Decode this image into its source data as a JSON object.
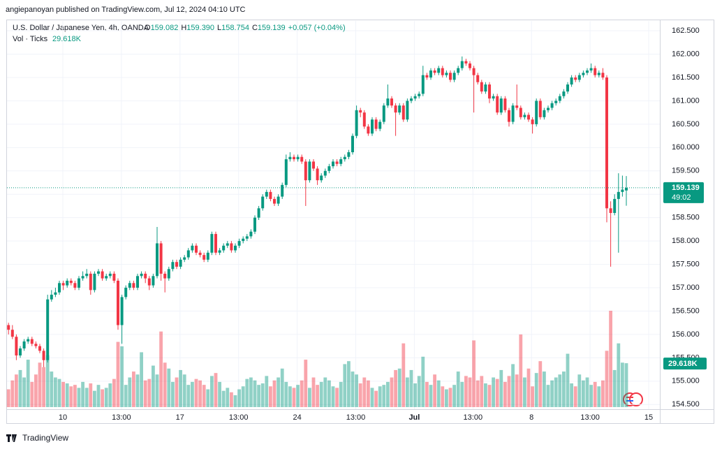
{
  "header": {
    "publisher": "angiepanoyan published on TradingView.com, Jul 12, 2024 04:10 UTC",
    "footer": "TradingView"
  },
  "chart_data": {
    "type": "candlestick",
    "title": "U.S. Dollar / Japanese Yen, 4h, OANDA",
    "ohlc_legend": [
      {
        "label": "O",
        "value": "159.082"
      },
      {
        "label": "H",
        "value": "159.390"
      },
      {
        "label": "L",
        "value": "158.754"
      },
      {
        "label": "C",
        "value": "159.139"
      }
    ],
    "change": "+0.057 (+0.04%)",
    "countdown": "49:02",
    "up_color": "#089981",
    "down_color": "#f23645",
    "ylim": [
      154.34,
      162.71
    ],
    "yticks": [
      {
        "value": 154.5,
        "label": "154.500"
      },
      {
        "value": 155,
        "label": "155.000"
      },
      {
        "value": 155.5,
        "label": "155.500"
      },
      {
        "value": 156,
        "label": "156.000"
      },
      {
        "value": 156.5,
        "label": "156.500"
      },
      {
        "value": 157,
        "label": "157.000"
      },
      {
        "value": 157.5,
        "label": "157.500"
      },
      {
        "value": 158,
        "label": "158.000"
      },
      {
        "value": 158.5,
        "label": "158.500"
      },
      {
        "value": 159,
        "label": "159.000"
      },
      {
        "value": 159.5,
        "label": "159.500"
      },
      {
        "value": 160,
        "label": "160.000"
      },
      {
        "value": 160.5,
        "label": "160.500"
      },
      {
        "value": 161,
        "label": "161.000"
      },
      {
        "value": 161.5,
        "label": "161.500"
      },
      {
        "value": 162,
        "label": "162.000"
      },
      {
        "value": 162.5,
        "label": "162.500"
      }
    ],
    "xtick_labels": [
      "10",
      "13:00",
      "17",
      "13:00",
      "24",
      "13:00",
      "Jul",
      "13:00",
      "8",
      "13:00",
      "15"
    ],
    "ohlc": [
      [
        156.2,
        156.25,
        156.0,
        156.1
      ],
      [
        156.1,
        156.2,
        155.9,
        155.95
      ],
      [
        155.95,
        156.0,
        155.45,
        155.55
      ],
      [
        155.55,
        155.75,
        155.5,
        155.7
      ],
      [
        155.7,
        155.9,
        155.65,
        155.85
      ],
      [
        155.85,
        155.95,
        155.8,
        155.9
      ],
      [
        155.9,
        155.95,
        155.75,
        155.8
      ],
      [
        155.8,
        155.85,
        155.7,
        155.75
      ],
      [
        155.75,
        155.8,
        155.6,
        155.65
      ],
      [
        155.65,
        155.7,
        155.3,
        155.45
      ],
      [
        155.45,
        156.85,
        155.4,
        156.75
      ],
      [
        156.75,
        156.95,
        156.7,
        156.85
      ],
      [
        156.85,
        157.0,
        156.8,
        156.9
      ],
      [
        156.9,
        157.15,
        156.85,
        157.1
      ],
      [
        157.1,
        157.15,
        156.95,
        157.05
      ],
      [
        157.05,
        157.2,
        157.0,
        157.15
      ],
      [
        157.15,
        157.2,
        157.05,
        157.1
      ],
      [
        157.1,
        157.15,
        156.95,
        157.0
      ],
      [
        157.0,
        157.25,
        156.95,
        157.2
      ],
      [
        157.2,
        157.35,
        157.15,
        157.25
      ],
      [
        157.25,
        157.4,
        157.2,
        157.3
      ],
      [
        157.3,
        157.35,
        156.85,
        156.95
      ],
      [
        156.95,
        157.35,
        156.9,
        157.3
      ],
      [
        157.3,
        157.4,
        157.25,
        157.35
      ],
      [
        157.35,
        157.4,
        157.15,
        157.2
      ],
      [
        157.2,
        157.3,
        157.15,
        157.25
      ],
      [
        157.25,
        157.35,
        157.2,
        157.3
      ],
      [
        157.3,
        157.35,
        157.1,
        157.15
      ],
      [
        157.15,
        157.2,
        156.1,
        156.2
      ],
      [
        156.2,
        156.85,
        155.8,
        156.8
      ],
      [
        156.8,
        157.05,
        156.75,
        157.0
      ],
      [
        157.0,
        157.15,
        156.95,
        157.1
      ],
      [
        157.1,
        157.15,
        156.95,
        157.0
      ],
      [
        157.0,
        157.3,
        156.95,
        157.25
      ],
      [
        157.25,
        157.35,
        157.2,
        157.3
      ],
      [
        157.3,
        157.35,
        157.1,
        157.2
      ],
      [
        157.2,
        157.25,
        156.95,
        157.05
      ],
      [
        157.05,
        157.3,
        157.0,
        157.25
      ],
      [
        157.25,
        158.3,
        157.2,
        157.95
      ],
      [
        157.95,
        158.0,
        157.15,
        157.3
      ],
      [
        157.3,
        157.35,
        156.9,
        157.2
      ],
      [
        157.2,
        157.45,
        157.15,
        157.4
      ],
      [
        157.4,
        157.6,
        157.35,
        157.55
      ],
      [
        157.55,
        157.6,
        157.4,
        157.45
      ],
      [
        157.45,
        157.65,
        157.4,
        157.6
      ],
      [
        157.6,
        157.7,
        157.55,
        157.65
      ],
      [
        157.65,
        157.85,
        157.6,
        157.8
      ],
      [
        157.8,
        157.95,
        157.75,
        157.9
      ],
      [
        157.9,
        157.95,
        157.7,
        157.75
      ],
      [
        157.75,
        157.8,
        157.65,
        157.7
      ],
      [
        157.7,
        157.75,
        157.55,
        157.6
      ],
      [
        157.6,
        157.8,
        157.55,
        157.75
      ],
      [
        157.75,
        158.2,
        157.7,
        158.15
      ],
      [
        158.15,
        158.2,
        157.7,
        157.75
      ],
      [
        157.75,
        157.85,
        157.7,
        157.8
      ],
      [
        157.8,
        157.95,
        157.75,
        157.9
      ],
      [
        157.9,
        158.0,
        157.85,
        157.95
      ],
      [
        157.95,
        158.0,
        157.75,
        157.8
      ],
      [
        157.8,
        157.95,
        157.75,
        157.9
      ],
      [
        157.9,
        158.05,
        157.85,
        158.0
      ],
      [
        158.0,
        158.1,
        157.95,
        158.05
      ],
      [
        158.05,
        158.15,
        158.0,
        158.1
      ],
      [
        158.1,
        158.25,
        158.05,
        158.2
      ],
      [
        158.2,
        158.55,
        158.15,
        158.5
      ],
      [
        158.5,
        158.75,
        158.45,
        158.7
      ],
      [
        158.7,
        159.0,
        158.65,
        158.95
      ],
      [
        158.95,
        159.1,
        158.9,
        159.05
      ],
      [
        159.05,
        159.1,
        158.85,
        158.9
      ],
      [
        158.9,
        158.95,
        158.75,
        158.8
      ],
      [
        158.8,
        159.0,
        158.75,
        158.95
      ],
      [
        158.95,
        159.25,
        158.9,
        159.2
      ],
      [
        159.2,
        159.85,
        159.15,
        159.75
      ],
      [
        159.75,
        159.9,
        159.7,
        159.8
      ],
      [
        159.8,
        159.85,
        159.7,
        159.75
      ],
      [
        159.75,
        159.85,
        159.7,
        159.8
      ],
      [
        159.8,
        159.85,
        159.65,
        159.7
      ],
      [
        159.7,
        159.75,
        158.75,
        159.3
      ],
      [
        159.3,
        159.75,
        159.25,
        159.7
      ],
      [
        159.7,
        159.75,
        159.5,
        159.55
      ],
      [
        159.55,
        159.6,
        159.2,
        159.3
      ],
      [
        159.3,
        159.45,
        159.25,
        159.4
      ],
      [
        159.4,
        159.55,
        159.35,
        159.5
      ],
      [
        159.5,
        159.65,
        159.45,
        159.6
      ],
      [
        159.6,
        159.75,
        159.55,
        159.7
      ],
      [
        159.7,
        159.75,
        159.6,
        159.65
      ],
      [
        159.65,
        159.8,
        159.6,
        159.75
      ],
      [
        159.75,
        159.85,
        159.7,
        159.8
      ],
      [
        159.8,
        159.95,
        159.75,
        159.9
      ],
      [
        159.9,
        160.3,
        159.85,
        160.25
      ],
      [
        160.25,
        160.9,
        160.2,
        160.8
      ],
      [
        160.8,
        160.85,
        160.65,
        160.75
      ],
      [
        160.75,
        160.8,
        160.4,
        160.45
      ],
      [
        160.45,
        160.5,
        160.25,
        160.3
      ],
      [
        160.3,
        160.65,
        160.25,
        160.6
      ],
      [
        160.6,
        160.65,
        160.35,
        160.4
      ],
      [
        160.4,
        160.6,
        160.35,
        160.55
      ],
      [
        160.55,
        160.95,
        160.5,
        160.9
      ],
      [
        160.9,
        161.35,
        160.85,
        161.05
      ],
      [
        161.05,
        161.1,
        160.85,
        160.9
      ],
      [
        160.9,
        160.95,
        160.25,
        160.75
      ],
      [
        160.75,
        160.95,
        160.7,
        160.9
      ],
      [
        160.9,
        160.95,
        160.55,
        160.6
      ],
      [
        160.6,
        161.05,
        160.55,
        161.0
      ],
      [
        161.0,
        161.1,
        160.95,
        161.05
      ],
      [
        161.05,
        161.15,
        161.0,
        161.1
      ],
      [
        161.1,
        161.2,
        161.05,
        161.15
      ],
      [
        161.15,
        161.75,
        161.1,
        161.55
      ],
      [
        161.55,
        161.6,
        161.45,
        161.5
      ],
      [
        161.5,
        161.7,
        161.45,
        161.65
      ],
      [
        161.65,
        161.7,
        161.55,
        161.6
      ],
      [
        161.6,
        161.75,
        161.55,
        161.7
      ],
      [
        161.7,
        161.75,
        161.5,
        161.55
      ],
      [
        161.55,
        161.65,
        161.5,
        161.6
      ],
      [
        161.6,
        161.65,
        161.4,
        161.45
      ],
      [
        161.45,
        161.65,
        161.4,
        161.6
      ],
      [
        161.6,
        161.75,
        161.55,
        161.7
      ],
      [
        161.7,
        161.95,
        161.65,
        161.85
      ],
      [
        161.85,
        161.9,
        161.75,
        161.8
      ],
      [
        161.8,
        161.85,
        161.65,
        161.7
      ],
      [
        161.7,
        161.75,
        160.75,
        161.55
      ],
      [
        161.55,
        161.6,
        161.35,
        161.4
      ],
      [
        161.4,
        161.45,
        161.15,
        161.2
      ],
      [
        161.2,
        161.4,
        161.15,
        161.35
      ],
      [
        161.35,
        161.4,
        160.95,
        161.05
      ],
      [
        161.05,
        161.15,
        161.0,
        161.1
      ],
      [
        161.1,
        161.15,
        160.7,
        160.75
      ],
      [
        160.75,
        161.1,
        160.7,
        161.05
      ],
      [
        161.05,
        161.1,
        160.75,
        160.8
      ],
      [
        160.8,
        160.85,
        160.45,
        160.55
      ],
      [
        160.55,
        160.95,
        160.5,
        160.9
      ],
      [
        160.9,
        161.35,
        160.8,
        160.85
      ],
      [
        160.85,
        160.9,
        160.6,
        160.65
      ],
      [
        160.65,
        160.75,
        160.6,
        160.7
      ],
      [
        160.7,
        160.75,
        160.55,
        160.6
      ],
      [
        160.6,
        160.65,
        160.3,
        160.5
      ],
      [
        160.5,
        161.05,
        160.45,
        161.0
      ],
      [
        161.0,
        161.05,
        160.6,
        160.65
      ],
      [
        160.65,
        160.85,
        160.6,
        160.8
      ],
      [
        160.8,
        160.9,
        160.75,
        160.85
      ],
      [
        160.85,
        161.0,
        160.8,
        160.95
      ],
      [
        160.95,
        161.05,
        160.9,
        161.0
      ],
      [
        161.0,
        161.15,
        160.95,
        161.1
      ],
      [
        161.1,
        161.25,
        161.05,
        161.2
      ],
      [
        161.2,
        161.4,
        161.15,
        161.35
      ],
      [
        161.35,
        161.55,
        161.3,
        161.5
      ],
      [
        161.5,
        161.55,
        161.4,
        161.45
      ],
      [
        161.45,
        161.6,
        161.4,
        161.55
      ],
      [
        161.55,
        161.65,
        161.5,
        161.6
      ],
      [
        161.6,
        161.7,
        161.55,
        161.65
      ],
      [
        161.65,
        161.8,
        161.6,
        161.7
      ],
      [
        161.7,
        161.75,
        161.5,
        161.55
      ],
      [
        161.55,
        161.65,
        161.5,
        161.6
      ],
      [
        161.6,
        161.7,
        161.45,
        161.5
      ],
      [
        161.5,
        161.55,
        158.4,
        158.7
      ],
      [
        158.7,
        158.85,
        157.45,
        158.6
      ],
      [
        158.6,
        159.0,
        158.55,
        158.9
      ],
      [
        158.9,
        159.45,
        157.75,
        159.05
      ],
      [
        159.05,
        159.4,
        158.95,
        159.1
      ],
      [
        159.082,
        159.39,
        158.754,
        159.139
      ]
    ],
    "volume": {
      "name": "Vol · Ticks",
      "last_label": "29.618K",
      "values": [
        12000,
        18000,
        22000,
        25000,
        20000,
        32000,
        17000,
        22000,
        30000,
        27000,
        35000,
        24000,
        20000,
        19000,
        17000,
        16000,
        14000,
        15000,
        13000,
        17000,
        13000,
        16000,
        11000,
        15000,
        12000,
        13000,
        16000,
        19000,
        44000,
        41000,
        15000,
        20000,
        24000,
        22000,
        37000,
        18000,
        19000,
        28000,
        22000,
        51000,
        30000,
        26000,
        17000,
        20000,
        25000,
        22000,
        15000,
        17000,
        19000,
        18000,
        15000,
        12000,
        21000,
        23000,
        17000,
        11000,
        13000,
        10000,
        8000,
        12000,
        14000,
        19000,
        20000,
        18000,
        15000,
        16000,
        21000,
        14000,
        18000,
        20000,
        26000,
        17000,
        14000,
        13000,
        15000,
        18000,
        32000,
        13000,
        20000,
        15000,
        17000,
        20000,
        18000,
        14000,
        13000,
        17000,
        29000,
        31000,
        24000,
        22000,
        16000,
        20000,
        18000,
        13000,
        11000,
        14000,
        15000,
        17000,
        20000,
        25000,
        26000,
        43000,
        20000,
        25000,
        16000,
        21000,
        34000,
        17000,
        15000,
        22000,
        18000,
        14000,
        12000,
        13000,
        15000,
        24000,
        17000,
        21000,
        20000,
        45000,
        18000,
        21000,
        16000,
        15000,
        20000,
        19000,
        25000,
        17000,
        21000,
        29000,
        22000,
        49000,
        20000,
        26000,
        14000,
        23000,
        31000,
        24000,
        15000,
        18000,
        20000,
        22000,
        24000,
        36000,
        16000,
        14000,
        22000,
        18000,
        20000,
        15000,
        17000,
        14000,
        18000,
        38000,
        65000,
        25000,
        43000,
        30000,
        29618
      ]
    }
  }
}
